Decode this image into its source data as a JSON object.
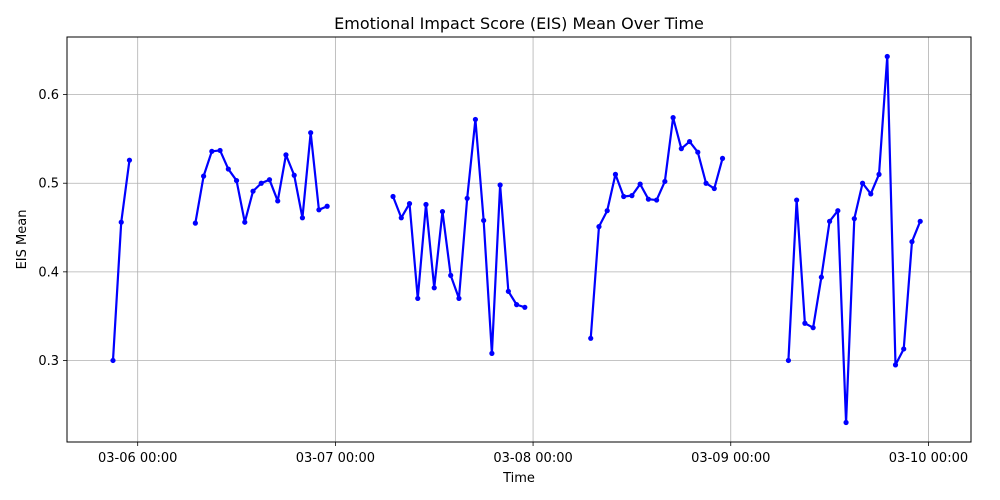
{
  "chart_data": {
    "type": "line",
    "title": "Emotional Impact Score (EIS) Mean Over Time",
    "xlabel": "Time",
    "ylabel": "EIS Mean",
    "x_ticks": [
      "03-06 00:00",
      "03-07 00:00",
      "03-08 00:00",
      "03-09 00:00",
      "03-10 00:00"
    ],
    "y_ticks": [
      "0.3",
      "0.4",
      "0.5",
      "0.6"
    ],
    "xlim": [
      "2024-03-05 15:25",
      "2024-03-10 05:10"
    ],
    "ylim": [
      0.208,
      0.665
    ],
    "grid": true,
    "line_color": "#0000ff",
    "segments": [
      [
        [
          "2024-03-05 21:00",
          0.3
        ],
        [
          "2024-03-05 22:00",
          0.456
        ],
        [
          "2024-03-05 23:00",
          0.526
        ]
      ],
      [
        [
          "2024-03-06 07:00",
          0.455
        ],
        [
          "2024-03-06 08:00",
          0.508
        ],
        [
          "2024-03-06 09:00",
          0.536
        ],
        [
          "2024-03-06 10:00",
          0.537
        ],
        [
          "2024-03-06 11:00",
          0.516
        ],
        [
          "2024-03-06 12:00",
          0.503
        ],
        [
          "2024-03-06 13:00",
          0.456
        ],
        [
          "2024-03-06 14:00",
          0.491
        ],
        [
          "2024-03-06 15:00",
          0.5
        ],
        [
          "2024-03-06 16:00",
          0.504
        ],
        [
          "2024-03-06 17:00",
          0.48
        ],
        [
          "2024-03-06 18:00",
          0.532
        ],
        [
          "2024-03-06 19:00",
          0.509
        ],
        [
          "2024-03-06 20:00",
          0.461
        ],
        [
          "2024-03-06 21:00",
          0.557
        ],
        [
          "2024-03-06 22:00",
          0.47
        ],
        [
          "2024-03-06 23:00",
          0.474
        ]
      ],
      [
        [
          "2024-03-07 07:00",
          0.485
        ],
        [
          "2024-03-07 08:00",
          0.461
        ],
        [
          "2024-03-07 09:00",
          0.477
        ],
        [
          "2024-03-07 10:00",
          0.37
        ],
        [
          "2024-03-07 11:00",
          0.476
        ],
        [
          "2024-03-07 12:00",
          0.382
        ],
        [
          "2024-03-07 13:00",
          0.468
        ],
        [
          "2024-03-07 14:00",
          0.396
        ],
        [
          "2024-03-07 15:00",
          0.37
        ],
        [
          "2024-03-07 16:00",
          0.483
        ],
        [
          "2024-03-07 17:00",
          0.572
        ],
        [
          "2024-03-07 18:00",
          0.458
        ],
        [
          "2024-03-07 19:00",
          0.308
        ],
        [
          "2024-03-07 20:00",
          0.498
        ],
        [
          "2024-03-07 21:00",
          0.378
        ],
        [
          "2024-03-07 22:00",
          0.363
        ],
        [
          "2024-03-07 23:00",
          0.36
        ]
      ],
      [
        [
          "2024-03-08 07:00",
          0.325
        ],
        [
          "2024-03-08 08:00",
          0.451
        ],
        [
          "2024-03-08 09:00",
          0.469
        ],
        [
          "2024-03-08 10:00",
          0.51
        ],
        [
          "2024-03-08 11:00",
          0.485
        ],
        [
          "2024-03-08 12:00",
          0.486
        ],
        [
          "2024-03-08 13:00",
          0.499
        ],
        [
          "2024-03-08 14:00",
          0.482
        ],
        [
          "2024-03-08 15:00",
          0.481
        ],
        [
          "2024-03-08 16:00",
          0.502
        ],
        [
          "2024-03-08 17:00",
          0.574
        ],
        [
          "2024-03-08 18:00",
          0.539
        ],
        [
          "2024-03-08 19:00",
          0.547
        ],
        [
          "2024-03-08 20:00",
          0.535
        ],
        [
          "2024-03-08 21:00",
          0.5
        ],
        [
          "2024-03-08 22:00",
          0.494
        ],
        [
          "2024-03-08 23:00",
          0.528
        ]
      ],
      [
        [
          "2024-03-09 07:00",
          0.3
        ],
        [
          "2024-03-09 08:00",
          0.481
        ],
        [
          "2024-03-09 09:00",
          0.342
        ],
        [
          "2024-03-09 10:00",
          0.337
        ],
        [
          "2024-03-09 11:00",
          0.394
        ],
        [
          "2024-03-09 12:00",
          0.457
        ],
        [
          "2024-03-09 13:00",
          0.469
        ],
        [
          "2024-03-09 14:00",
          0.23
        ],
        [
          "2024-03-09 15:00",
          0.46
        ],
        [
          "2024-03-09 16:00",
          0.5
        ],
        [
          "2024-03-09 17:00",
          0.488
        ],
        [
          "2024-03-09 18:00",
          0.51
        ],
        [
          "2024-03-09 19:00",
          0.643
        ],
        [
          "2024-03-09 20:00",
          0.295
        ],
        [
          "2024-03-09 21:00",
          0.313
        ],
        [
          "2024-03-09 22:00",
          0.434
        ],
        [
          "2024-03-09 23:00",
          0.457
        ]
      ]
    ]
  }
}
